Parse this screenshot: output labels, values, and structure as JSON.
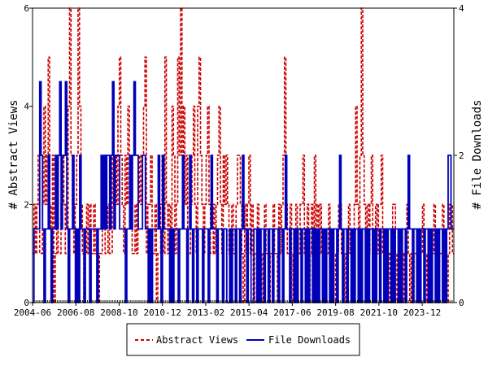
{
  "chart_data": {
    "type": "line",
    "y_left_label": "# Abstract Views",
    "y_right_label": "# File Downloads",
    "y_left_lim": [
      0,
      6
    ],
    "y_right_lim": [
      0,
      4
    ],
    "y_left_ticks": [
      "0",
      "2",
      "4",
      "6"
    ],
    "y_right_ticks": [
      "0",
      "2",
      "4"
    ],
    "x_range": [
      "2004-06",
      "2025-07"
    ],
    "x_ticks": [
      "2004-06",
      "2006-08",
      "2008-10",
      "2010-12",
      "2013-02",
      "2015-04",
      "2017-06",
      "2019-08",
      "2021-10",
      "2023-12"
    ],
    "grid": false,
    "legend_position": "bottom",
    "series": [
      {
        "name": "Abstract Views",
        "axis": "left",
        "color": "#cc0000",
        "style": "dashed",
        "values": [
          1,
          2,
          1,
          2,
          3,
          1,
          1,
          2,
          4,
          2,
          3,
          5,
          2,
          1,
          3,
          0,
          1,
          2,
          1,
          1,
          2,
          3,
          2,
          1,
          1,
          4,
          6,
          3,
          2,
          1,
          2,
          3,
          6,
          4,
          2,
          1,
          0,
          1,
          2,
          1,
          2,
          1,
          1,
          2,
          1,
          1,
          0,
          1,
          1,
          2,
          2,
          1,
          1,
          2,
          1,
          1,
          3,
          2,
          3,
          2,
          4,
          5,
          3,
          2,
          1,
          3,
          2,
          4,
          3,
          2,
          1,
          1,
          2,
          1,
          2,
          3,
          2,
          3,
          4,
          5,
          1,
          2,
          2,
          3,
          1,
          1,
          2,
          0,
          1,
          1,
          2,
          3,
          1,
          5,
          2,
          1,
          2,
          1,
          4,
          3,
          1,
          2,
          5,
          3,
          6,
          3,
          4,
          2,
          3,
          1,
          1,
          2,
          3,
          4,
          2,
          1,
          4,
          5,
          3,
          2,
          1,
          2,
          3,
          4,
          2,
          1,
          1,
          2,
          1,
          2,
          3,
          4,
          2,
          1,
          3,
          2,
          3,
          2,
          1,
          0,
          2,
          1,
          1,
          2,
          3,
          3,
          2,
          1,
          0,
          2,
          1,
          2,
          3,
          1,
          2,
          0,
          1,
          1,
          2,
          1,
          1,
          0,
          1,
          2,
          1,
          1,
          0,
          1,
          1,
          2,
          1,
          1,
          0,
          2,
          1,
          2,
          3,
          5,
          2,
          1,
          1,
          2,
          0,
          1,
          1,
          2,
          1,
          1,
          2,
          2,
          3,
          1,
          1,
          2,
          0,
          1,
          2,
          1,
          3,
          1,
          2,
          1,
          2,
          1,
          1,
          0,
          1,
          1,
          2,
          1,
          0,
          1,
          1,
          0,
          1,
          2,
          2,
          1,
          1,
          0,
          1,
          1,
          2,
          1,
          0,
          1,
          2,
          4,
          2,
          1,
          3,
          6,
          3,
          2,
          1,
          2,
          1,
          2,
          3,
          1,
          1,
          2,
          1,
          2,
          2,
          3,
          1,
          1,
          0,
          1,
          1,
          0,
          1,
          2,
          2,
          1,
          0,
          1,
          1,
          1,
          0,
          1,
          1,
          2,
          1,
          0,
          1,
          0,
          1,
          1,
          1,
          0,
          0,
          1,
          2,
          1,
          1,
          0,
          1,
          1,
          0,
          1,
          2,
          1,
          1,
          0,
          1,
          1,
          2,
          1,
          1,
          0,
          1,
          2,
          2,
          1
        ]
      },
      {
        "name": "File Downloads",
        "axis": "right",
        "color": "#0000bb",
        "style": "solid",
        "values": [
          0,
          1,
          1,
          1,
          1,
          3,
          2,
          1,
          0,
          1,
          1,
          2,
          1,
          0,
          1,
          1,
          2,
          1,
          2,
          3,
          1,
          2,
          2,
          3,
          1,
          0,
          1,
          1,
          2,
          1,
          0,
          1,
          0,
          2,
          1,
          1,
          0,
          1,
          1,
          1,
          0,
          1,
          1,
          1,
          1,
          0,
          1,
          1,
          2,
          1,
          2,
          1,
          2,
          2,
          1,
          2,
          3,
          1,
          2,
          2,
          2,
          1,
          1,
          1,
          1,
          0,
          1,
          1,
          2,
          1,
          2,
          3,
          2,
          2,
          1,
          1,
          1,
          2,
          2,
          1,
          1,
          0,
          1,
          0,
          1,
          1,
          1,
          1,
          2,
          1,
          0,
          2,
          1,
          1,
          1,
          1,
          0,
          1,
          0,
          1,
          1,
          1,
          0,
          1,
          1,
          2,
          1,
          1,
          0,
          1,
          2,
          1,
          0,
          1,
          1,
          0,
          1,
          1,
          1,
          0,
          1,
          1,
          1,
          0,
          1,
          2,
          1,
          1,
          1,
          0,
          1,
          1,
          1,
          0,
          1,
          1,
          0,
          0,
          1,
          0,
          1,
          1,
          0,
          1,
          1,
          0,
          1,
          2,
          1,
          1,
          0,
          1,
          1,
          0,
          0,
          1,
          1,
          0,
          1,
          0,
          1,
          1,
          0,
          1,
          1,
          0,
          1,
          1,
          0,
          1,
          1,
          1,
          0,
          1,
          1,
          0,
          1,
          2,
          1,
          1,
          0,
          1,
          1,
          0,
          1,
          0,
          1,
          1,
          0,
          1,
          1,
          0,
          1,
          0,
          1,
          1,
          0,
          1,
          0,
          1,
          0,
          1,
          1,
          0,
          1,
          0,
          1,
          1,
          0,
          1,
          0,
          1,
          1,
          0,
          1,
          2,
          1,
          0,
          1,
          1,
          0,
          1,
          1,
          0,
          1,
          0,
          1,
          1,
          0,
          1,
          0,
          1,
          1,
          0,
          1,
          0,
          1,
          1,
          0,
          1,
          0,
          1,
          1,
          0,
          1,
          1,
          0,
          1,
          0,
          1,
          1,
          0,
          1,
          0,
          1,
          1,
          0,
          1,
          0,
          1,
          1,
          0,
          1,
          2,
          1,
          1,
          0,
          1,
          1,
          0,
          1,
          0,
          1,
          1,
          0,
          1,
          1,
          0,
          1,
          0,
          1,
          1,
          0,
          1,
          0,
          1,
          1,
          0,
          1,
          0,
          1,
          2,
          2,
          1,
          1
        ]
      }
    ]
  }
}
